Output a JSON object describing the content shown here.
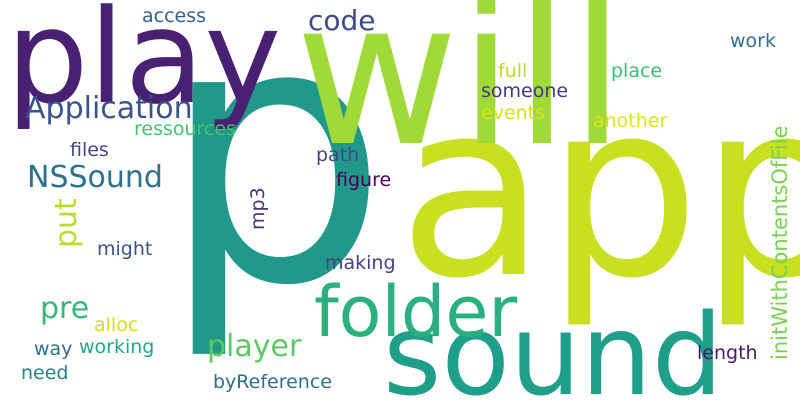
{
  "words": {
    "p": {
      "text": "p",
      "color": "#21998a"
    },
    "app": {
      "text": "app",
      "color": "#c8e020"
    },
    "will": {
      "text": "will",
      "color": "#a0da39"
    },
    "play": {
      "text": "play",
      "color": "#482173"
    },
    "sound": {
      "text": "sound",
      "color": "#1f9e89"
    },
    "folder": {
      "text": "folder",
      "color": "#2ab07f"
    },
    "application": {
      "text": "Application",
      "color": "#3b528b"
    },
    "nssound": {
      "text": "NSSound",
      "color": "#2c728e"
    },
    "code": {
      "text": "code",
      "color": "#3e4a89"
    },
    "player": {
      "text": "player",
      "color": "#5ec962"
    },
    "pre": {
      "text": "pre",
      "color": "#35b779"
    },
    "put": {
      "text": "put",
      "color": "#b5de2b"
    },
    "initwith": {
      "text": "initWithContentsOfFile",
      "color": "#7ad151"
    },
    "access": {
      "text": "access",
      "color": "#33638d"
    },
    "work": {
      "text": "work",
      "color": "#2c728e"
    },
    "full": {
      "text": "full",
      "color": "#b5de2b"
    },
    "place": {
      "text": "place",
      "color": "#3dbc74"
    },
    "someone": {
      "text": "someone",
      "color": "#453781"
    },
    "events": {
      "text": "events",
      "color": "#d8e219"
    },
    "another": {
      "text": "another",
      "color": "#dde318"
    },
    "ressources": {
      "text": "ressources",
      "color": "#48c16e"
    },
    "files": {
      "text": "files",
      "color": "#404688"
    },
    "path": {
      "text": "path",
      "color": "#3e4989"
    },
    "figure": {
      "text": "figure",
      "color": "#440154"
    },
    "mp3": {
      "text": "mp3",
      "color": "#46327e"
    },
    "might": {
      "text": "might",
      "color": "#3b528b"
    },
    "making": {
      "text": "making",
      "color": "#424186"
    },
    "alloc": {
      "text": "alloc",
      "color": "#d0e11c"
    },
    "way": {
      "text": "way",
      "color": "#2d708e"
    },
    "working": {
      "text": "working",
      "color": "#21a685"
    },
    "need": {
      "text": "need",
      "color": "#26828e"
    },
    "byreference": {
      "text": "byReference",
      "color": "#2e6e8e"
    },
    "length": {
      "text": "length",
      "color": "#48186a"
    }
  }
}
